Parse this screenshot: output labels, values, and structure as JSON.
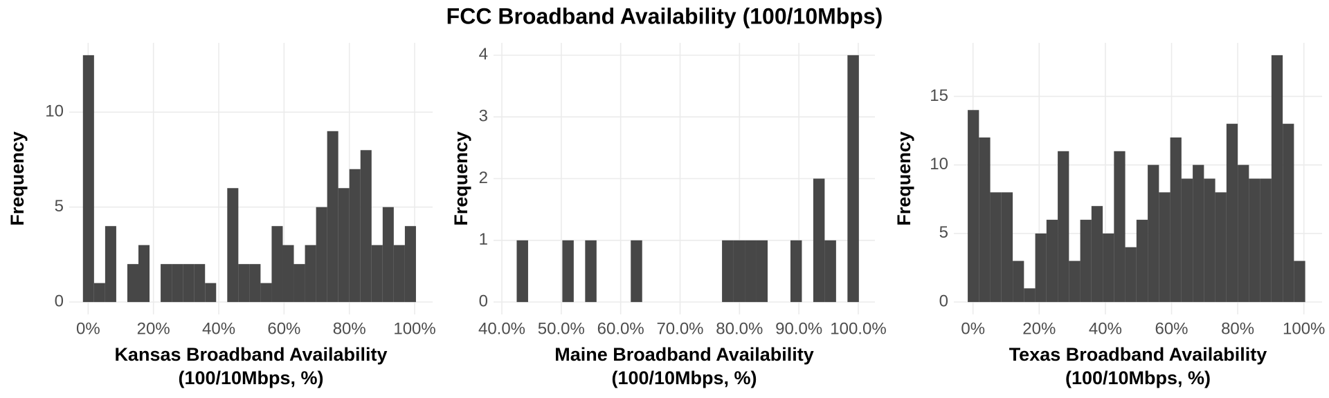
{
  "title": "FCC Broadband Availability (100/10Mbps)",
  "chart_data": [
    {
      "type": "histogram",
      "color": "#474747",
      "grid": true,
      "xlabel": [
        "Kansas Broadband Availability",
        "(100/10Mbps, %)"
      ],
      "ylabel": "Frequency",
      "bins": [
        -1.6,
        1.8,
        5.2,
        8.6,
        12.0,
        15.4,
        18.8,
        22.2,
        25.6,
        29.0,
        32.4,
        35.8,
        39.2,
        42.6,
        46.0,
        49.4,
        52.8,
        56.2,
        59.6,
        63.0,
        66.4,
        69.8,
        73.2,
        76.6,
        80.0,
        83.4,
        86.8,
        90.2,
        93.6,
        97.0,
        100.4
      ],
      "values": [
        13,
        1,
        4,
        0,
        2,
        3,
        0,
        2,
        2,
        2,
        2,
        1,
        0,
        6,
        2,
        2,
        1,
        4,
        3,
        2,
        3,
        5,
        9,
        6,
        7,
        8,
        3,
        5,
        3,
        4
      ],
      "xlim": [
        -5.8,
        105.5
      ],
      "ylim": [
        -0.65,
        13.65
      ],
      "xticks": [
        {
          "value": 0,
          "label": "0%"
        },
        {
          "value": 20,
          "label": "20%"
        },
        {
          "value": 40,
          "label": "40%"
        },
        {
          "value": 60,
          "label": "60%"
        },
        {
          "value": 80,
          "label": "80%"
        },
        {
          "value": 100,
          "label": "100%"
        }
      ],
      "yticks": [
        0,
        5,
        10
      ]
    },
    {
      "type": "histogram",
      "color": "#474747",
      "grid": true,
      "xlabel": [
        "Maine Broadband Availability",
        "(100/10Mbps, %)"
      ],
      "ylabel": "Frequency",
      "bins": [
        42.5,
        44.42,
        46.34,
        48.26,
        50.18,
        52.1,
        54.02,
        55.94,
        57.86,
        59.78,
        61.7,
        63.62,
        65.54,
        67.46,
        69.38,
        71.3,
        73.22,
        75.14,
        77.06,
        78.98,
        80.9,
        82.82,
        84.74,
        86.66,
        88.58,
        90.5,
        92.42,
        94.34,
        96.26,
        98.18,
        100.1
      ],
      "values": [
        1,
        0,
        0,
        0,
        1,
        0,
        1,
        0,
        0,
        0,
        1,
        0,
        0,
        0,
        0,
        0,
        0,
        0,
        1,
        1,
        1,
        1,
        0,
        0,
        1,
        0,
        2,
        1,
        0,
        4
      ],
      "xlim": [
        38.6,
        102.8
      ],
      "ylim": [
        -0.2,
        4.2
      ],
      "xticks": [
        {
          "value": 40,
          "label": "40.0%"
        },
        {
          "value": 50,
          "label": "50.0%"
        },
        {
          "value": 60,
          "label": "60.0%"
        },
        {
          "value": 70,
          "label": "70.0%"
        },
        {
          "value": 80,
          "label": "80.0%"
        },
        {
          "value": 90,
          "label": "90.0%"
        },
        {
          "value": 100,
          "label": "100.0%"
        }
      ],
      "yticks": [
        0,
        1,
        2,
        3,
        4
      ]
    },
    {
      "type": "histogram",
      "color": "#474747",
      "grid": true,
      "xlabel": [
        "Texas Broadband Availability",
        "(100/10Mbps, %)"
      ],
      "ylabel": "Frequency",
      "bins": [
        -1.6,
        1.8,
        5.2,
        8.6,
        12.0,
        15.4,
        18.8,
        22.2,
        25.6,
        29.0,
        32.4,
        35.8,
        39.2,
        42.6,
        46.0,
        49.4,
        52.8,
        56.2,
        59.6,
        63.0,
        66.4,
        69.8,
        73.2,
        76.6,
        80.0,
        83.4,
        86.8,
        90.2,
        93.6,
        97.0,
        100.4
      ],
      "values": [
        14,
        12,
        8,
        8,
        3,
        1,
        5,
        6,
        11,
        3,
        6,
        7,
        5,
        11,
        4,
        6,
        10,
        8,
        12,
        9,
        10,
        9,
        8,
        13,
        10,
        9,
        9,
        18,
        13,
        3
      ],
      "xlim": [
        -5.8,
        105.5
      ],
      "ylim": [
        -0.9,
        18.9
      ],
      "xticks": [
        {
          "value": 0,
          "label": "0%"
        },
        {
          "value": 20,
          "label": "20%"
        },
        {
          "value": 40,
          "label": "40%"
        },
        {
          "value": 60,
          "label": "60%"
        },
        {
          "value": 80,
          "label": "80%"
        },
        {
          "value": 100,
          "label": "100%"
        }
      ],
      "yticks": [
        0,
        5,
        10,
        15
      ]
    }
  ]
}
